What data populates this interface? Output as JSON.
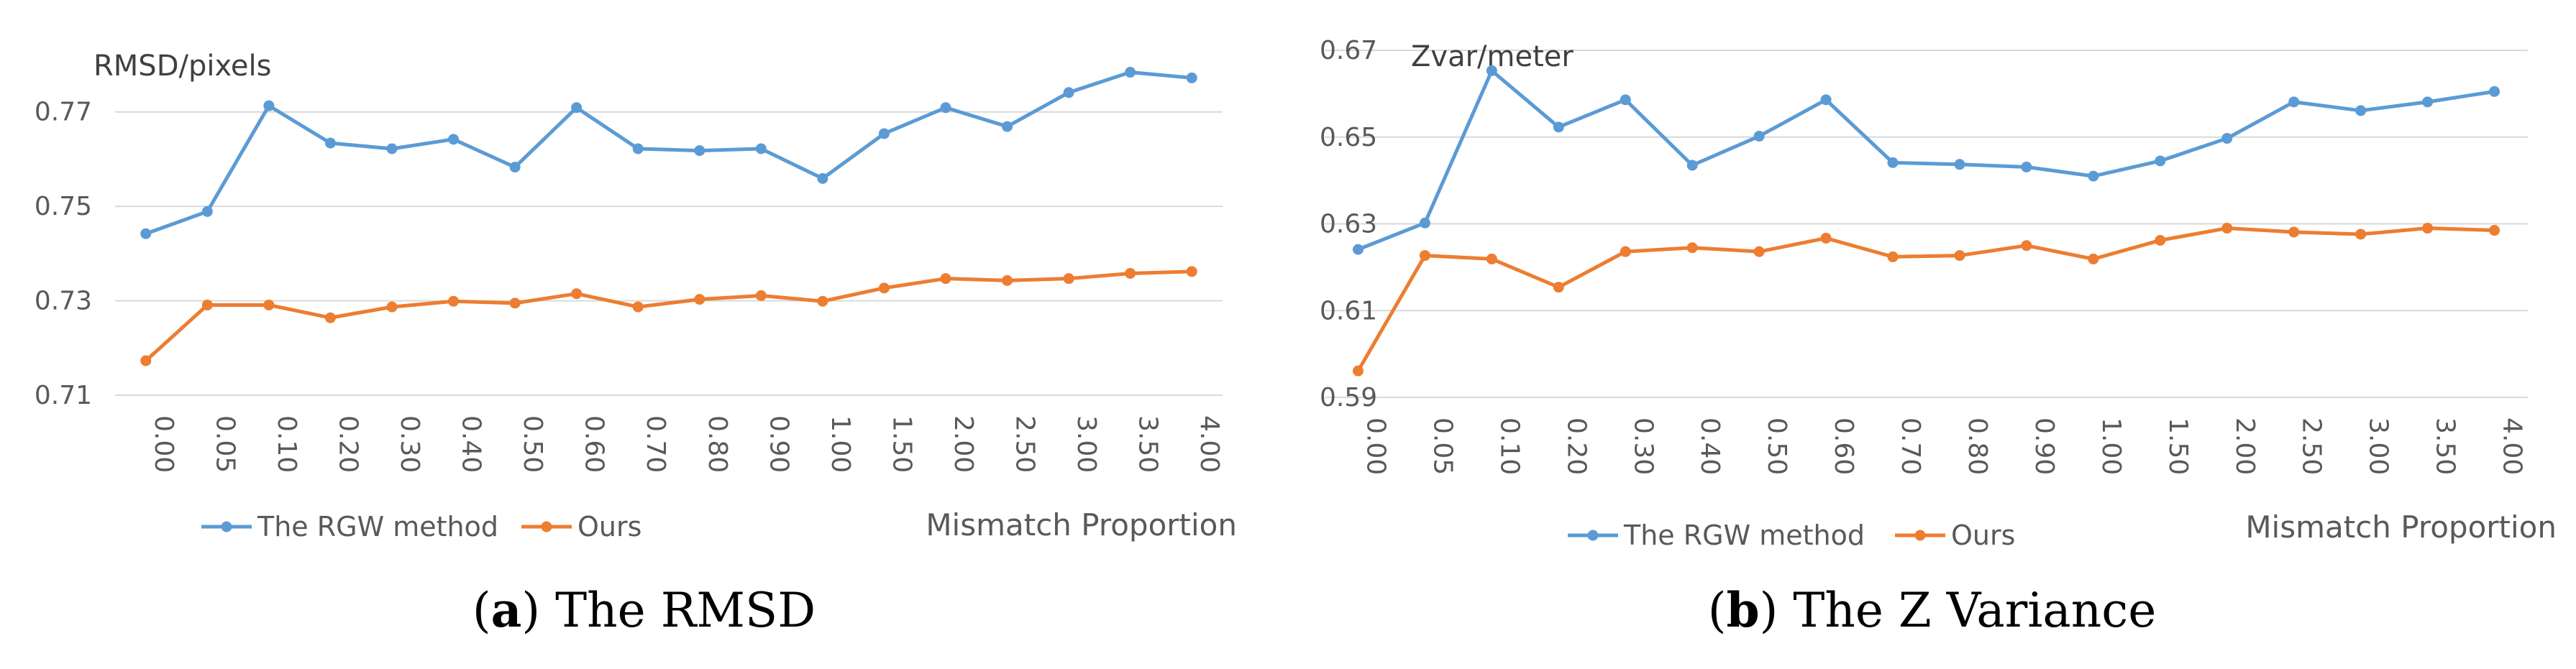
{
  "captions": [
    {
      "letter": "a",
      "close": ")",
      "open": "(",
      "text": " The RMSD"
    },
    {
      "letter": "b",
      "close": ")",
      "open": "(",
      "text": " The Z Variance"
    }
  ],
  "colors": {
    "rgw": "#5b9bd5",
    "ours": "#ed7d31",
    "grid": "#d9d9d9"
  },
  "chart_data": [
    {
      "type": "line",
      "title": "",
      "ylabel": "RMSD/pixels",
      "xlabel": "Mismatch Proportion",
      "categories": [
        "0.00",
        "0.05",
        "0.10",
        "0.20",
        "0.30",
        "0.40",
        "0.50",
        "0.60",
        "0.70",
        "0.80",
        "0.90",
        "1.00",
        "1.50",
        "2.00",
        "2.50",
        "3.00",
        "3.50",
        "4.00"
      ],
      "ylim": [
        0.71,
        0.78
      ],
      "yticks": [
        "0.71",
        "0.73",
        "0.75",
        "0.77"
      ],
      "ytick_values": [
        0.71,
        0.73,
        0.75,
        0.77
      ],
      "legend_position": "bottom-left",
      "series": [
        {
          "name": "The RGW method",
          "color": "#5b9bd5",
          "values": [
            0.7442,
            0.7489,
            0.7713,
            0.7634,
            0.7622,
            0.7642,
            0.7583,
            0.7709,
            0.7622,
            0.7618,
            0.7622,
            0.7559,
            0.7654,
            0.7709,
            0.7669,
            0.7741,
            0.7784,
            0.7772
          ]
        },
        {
          "name": "Ours",
          "color": "#ed7d31",
          "values": [
            0.7173,
            0.7291,
            0.7291,
            0.7264,
            0.7287,
            0.7299,
            0.7295,
            0.7315,
            0.7287,
            0.7303,
            0.7311,
            0.7299,
            0.7327,
            0.7347,
            0.7343,
            0.7347,
            0.7358,
            0.7362
          ]
        }
      ]
    },
    {
      "type": "line",
      "title": "",
      "ylabel": "Zvar/meter",
      "xlabel": "Mismatch Proportion",
      "categories": [
        "0.00",
        "0.05",
        "0.10",
        "0.20",
        "0.30",
        "0.40",
        "0.50",
        "0.60",
        "0.70",
        "0.80",
        "0.90",
        "1.00",
        "1.50",
        "2.00",
        "2.50",
        "3.00",
        "3.50",
        "4.00"
      ],
      "ylim": [
        0.59,
        0.67
      ],
      "yticks": [
        "0.59",
        "0.61",
        "0.63",
        "0.65",
        "0.67"
      ],
      "ytick_values": [
        0.59,
        0.61,
        0.63,
        0.65,
        0.67
      ],
      "legend_position": "bottom-left",
      "series": [
        {
          "name": "The RGW method",
          "color": "#5b9bd5",
          "values": [
            0.6241,
            0.6302,
            0.6653,
            0.6523,
            0.6586,
            0.6435,
            0.6502,
            0.6586,
            0.6441,
            0.6437,
            0.6431,
            0.641,
            0.6445,
            0.6497,
            0.6581,
            0.6561,
            0.6581,
            0.6605
          ]
        },
        {
          "name": "Ours",
          "color": "#ed7d31",
          "values": [
            0.5961,
            0.6227,
            0.6219,
            0.6154,
            0.6236,
            0.6245,
            0.6236,
            0.6267,
            0.6224,
            0.6227,
            0.625,
            0.6219,
            0.6262,
            0.629,
            0.6281,
            0.6276,
            0.629,
            0.6285
          ]
        }
      ]
    }
  ]
}
